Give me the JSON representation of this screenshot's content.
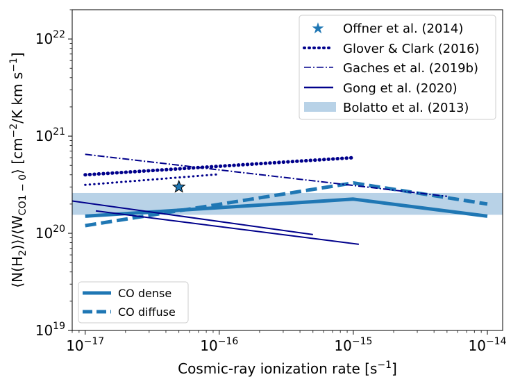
{
  "chart_data": {
    "type": "line",
    "xscale": "log",
    "yscale": "log",
    "xlim": [
      8e-18,
      1.3e-14
    ],
    "ylim": [
      1e+19,
      2e+22
    ],
    "xlabel": "Cosmic-ray ionization rate [s",
    "xlabel_sup": "−1",
    "xlabel_end": "]",
    "ylabel": "⟨N(H",
    "ylabel_sub1": "2",
    "ylabel_mid": ")⟩/⟨W",
    "ylabel_sub2": "CO1 − 0",
    "ylabel_end": "⟩ [cm",
    "ylabel_sup1": "−2",
    "ylabel_tail": "/K km s",
    "ylabel_sup2": "−1",
    "ylabel_close": "]",
    "xticks": [
      {
        "value": 1e-17,
        "base": "10",
        "exp": "−17"
      },
      {
        "value": 1e-16,
        "base": "10",
        "exp": "−16"
      },
      {
        "value": 1e-15,
        "base": "10",
        "exp": "−15"
      },
      {
        "value": 1e-14,
        "base": "10",
        "exp": "−14"
      }
    ],
    "yticks": [
      {
        "value": 1e+19,
        "base": "10",
        "exp": "19"
      },
      {
        "value": 1e+20,
        "base": "10",
        "exp": "20"
      },
      {
        "value": 1e+21,
        "base": "10",
        "exp": "21"
      },
      {
        "value": 1e+22,
        "base": "10",
        "exp": "22"
      }
    ],
    "band": {
      "name": "Bolatto et al. (2013)",
      "y_low": 1.55e+20,
      "y_high": 2.6e+20,
      "color": "#b8d2e7"
    },
    "series": [
      {
        "name": "CO dense",
        "style": "solid",
        "color": "#1f77b4",
        "weight": "thick",
        "x": [
          1e-17,
          1e-15,
          1e-14
        ],
        "y": [
          1.5e+20,
          2.25e+20,
          1.5e+20
        ]
      },
      {
        "name": "CO diffuse",
        "style": "dash",
        "color": "#1f77b4",
        "weight": "thick",
        "x": [
          1e-17,
          1e-15,
          1e-14
        ],
        "y": [
          1.2e+20,
          3.3e+20,
          2e+20
        ]
      },
      {
        "name": "Glover & Clark (2016) A",
        "group": "Glover & Clark (2016)",
        "style": "dot",
        "color": "#00008b",
        "weight": "heavy",
        "x": [
          1e-17,
          1e-15
        ],
        "y": [
          4e+20,
          6e+20
        ]
      },
      {
        "name": "Glover & Clark (2016) B",
        "group": "Glover & Clark (2016)",
        "style": "dot",
        "color": "#00008b",
        "weight": "medium",
        "x": [
          1e-17,
          1e-16
        ],
        "y": [
          3.15e+20,
          4.05e+20
        ]
      },
      {
        "name": "Gaches et al. (2019b)",
        "group": "Gaches et al. (2019b)",
        "style": "dashdot",
        "color": "#00008b",
        "weight": "thin",
        "x": [
          1e-17,
          5e-15
        ],
        "y": [
          6.5e+20,
          2.4e+20
        ]
      },
      {
        "name": "Gong et al. (2020) A",
        "group": "Gong et al. (2020)",
        "style": "solid",
        "color": "#00008b",
        "weight": "thin",
        "x": [
          8e-18,
          5e-16
        ],
        "y": [
          2.15e+20,
          9.7e+19
        ]
      },
      {
        "name": "Gong et al. (2020) B",
        "group": "Gong et al. (2020)",
        "style": "solid",
        "color": "#00008b",
        "weight": "thin",
        "x": [
          1.2e-17,
          1.1e-15
        ],
        "y": [
          1.7e+20,
          7.7e+19
        ]
      }
    ],
    "points": [
      {
        "name": "Offner et al. (2014)",
        "x": 5e-17,
        "y": 3e+20,
        "marker": "star",
        "color": "#1f77b4"
      }
    ],
    "legend_top_right": {
      "entries": [
        {
          "label": "Offner et al. (2014)",
          "kind": "star"
        },
        {
          "label": "Glover & Clark (2016)",
          "kind": "dot"
        },
        {
          "label": "Gaches et al. (2019b)",
          "kind": "dashdot"
        },
        {
          "label": "Gong et al. (2020)",
          "kind": "solid"
        },
        {
          "label": "Bolatto et al. (2013)",
          "kind": "band"
        }
      ]
    },
    "legend_bottom_left": {
      "entries": [
        {
          "label": "CO dense",
          "kind": "solid-thick"
        },
        {
          "label": "CO diffuse",
          "kind": "dash-thick"
        }
      ]
    }
  }
}
